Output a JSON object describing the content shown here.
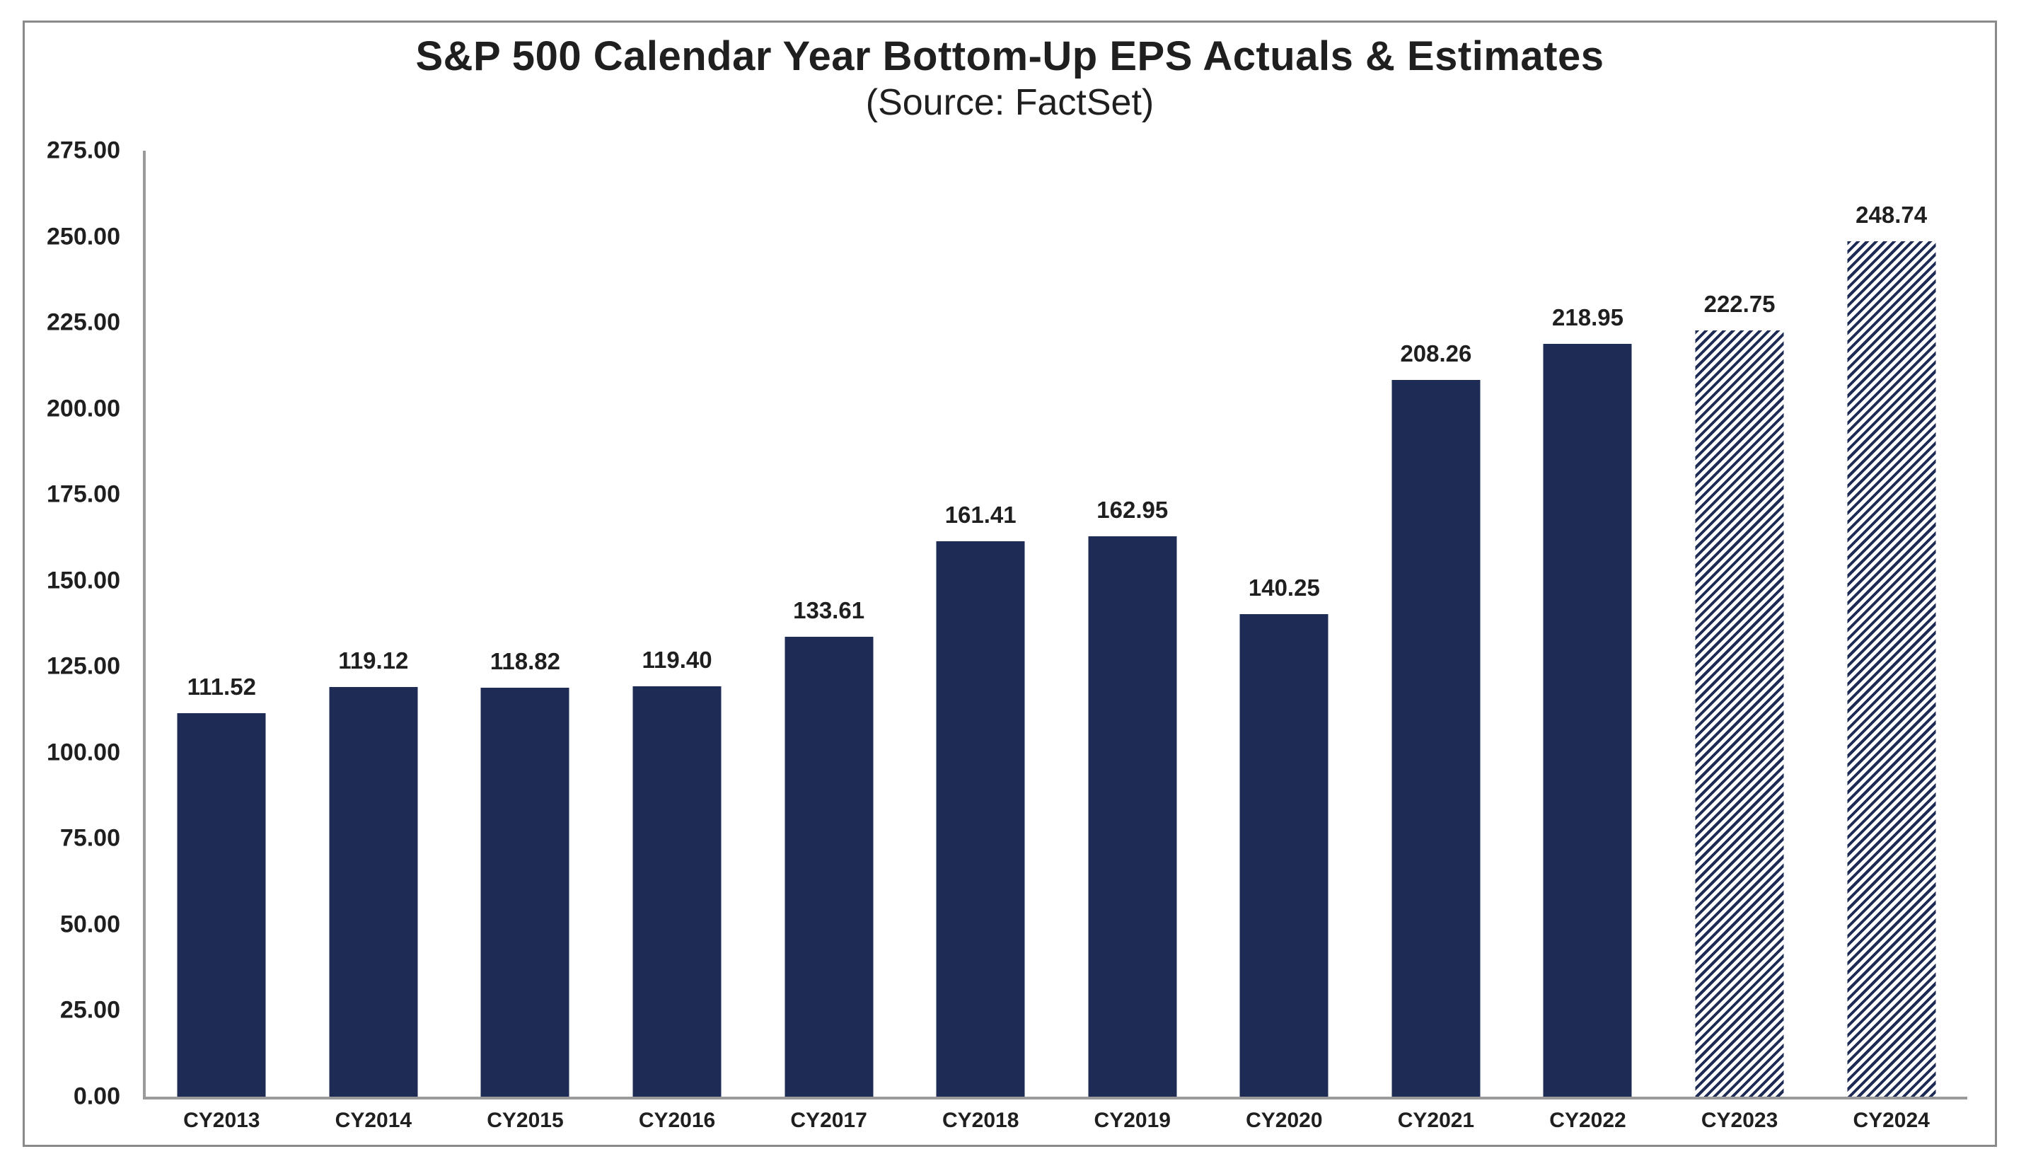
{
  "chart_data": {
    "type": "bar",
    "title": "S&P 500 Calendar Year Bottom-Up EPS Actuals & Estimates",
    "subtitle": "(Source: FactSet)",
    "categories": [
      "CY2013",
      "CY2014",
      "CY2015",
      "CY2016",
      "CY2017",
      "CY2018",
      "CY2019",
      "CY2020",
      "CY2021",
      "CY2022",
      "CY2023",
      "CY2024"
    ],
    "values": [
      111.52,
      119.12,
      118.82,
      119.4,
      133.61,
      161.41,
      162.95,
      140.25,
      208.26,
      218.95,
      222.75,
      248.74
    ],
    "bar_labels": [
      "111.52",
      "119.12",
      "118.82",
      "119.40",
      "133.61",
      "161.41",
      "162.95",
      "140.25",
      "208.26",
      "218.95",
      "222.75",
      "248.74"
    ],
    "estimate_categories": [
      "CY2023",
      "CY2024"
    ],
    "estimate_style": "diagonal-hatch",
    "xlabel": "",
    "ylabel": "",
    "ylim": [
      0,
      275
    ],
    "y_ticks": [
      {
        "label": "275.00",
        "value": 275
      },
      {
        "label": "250.00",
        "value": 250
      },
      {
        "label": "225.00",
        "value": 225
      },
      {
        "label": "200.00",
        "value": 200
      },
      {
        "label": "175.00",
        "value": 175
      },
      {
        "label": "150.00",
        "value": 150
      },
      {
        "label": "125.00",
        "value": 125
      },
      {
        "label": "100.00",
        "value": 100
      },
      {
        "label": "75.00",
        "value": 75
      },
      {
        "label": "50.00",
        "value": 50
      },
      {
        "label": "25.00",
        "value": 25
      },
      {
        "label": "0.00",
        "value": 0
      }
    ],
    "grid": "off",
    "legend": "none",
    "colors": {
      "bar": "#1e2c55",
      "hatch_stripe": "#1e2c55",
      "hatch_background": "#ffffff",
      "axis_line": "#9b9b9b",
      "frame_border": "#8a8a8a",
      "text": "#1f1f1f",
      "background": "#ffffff"
    }
  }
}
